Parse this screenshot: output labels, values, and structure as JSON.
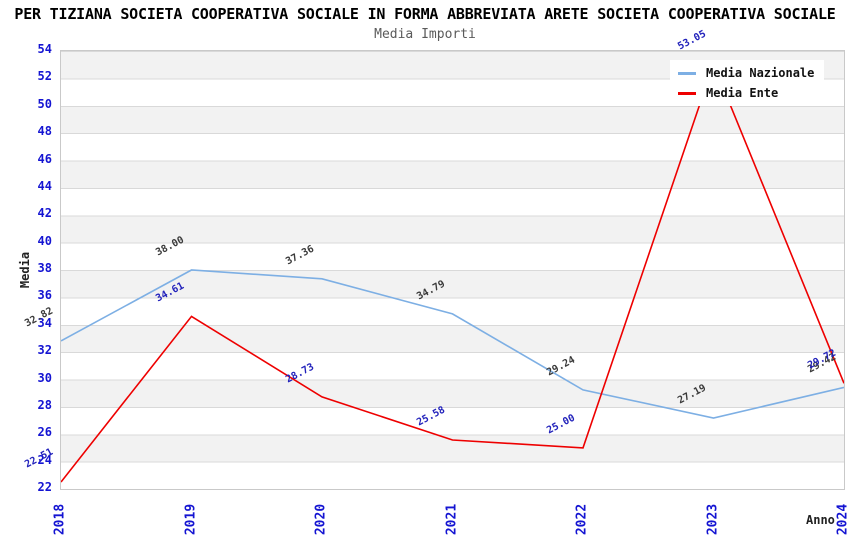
{
  "chart_data": {
    "type": "line",
    "title": "PER TIZIANA SOCIETA COOPERATIVA SOCIALE IN FORMA ABBREVIATA ARETE SOCIETA COOPERATIVA SOCIALE",
    "subtitle": "Media Importi",
    "xlabel": "Anno",
    "ylabel": "Media",
    "x": [
      2018,
      2019,
      2020,
      2021,
      2022,
      2023,
      2024
    ],
    "ylim": [
      22,
      54
    ],
    "ytick_step": 2,
    "grid": "horizontal-bands-alternating",
    "legend_position": "top-right",
    "series": [
      {
        "name": "Media Nazionale",
        "color": "#7dafe4",
        "label_color": "#3a3a3a",
        "values": [
          32.82,
          38.0,
          37.36,
          34.79,
          29.24,
          27.19,
          29.42
        ]
      },
      {
        "name": "Media Ente",
        "color": "#ee0000",
        "label_color": "#2222bb",
        "values": [
          22.51,
          34.61,
          28.73,
          25.58,
          25.0,
          53.05,
          29.72
        ]
      }
    ]
  },
  "colors": {
    "tick_label": "#1414d2",
    "band_gray": "#f2f2f2",
    "gridline": "#d9d9d9",
    "plot_border": "#c9c9c9",
    "title": "#000000",
    "subtitle": "#5a5a5a"
  }
}
